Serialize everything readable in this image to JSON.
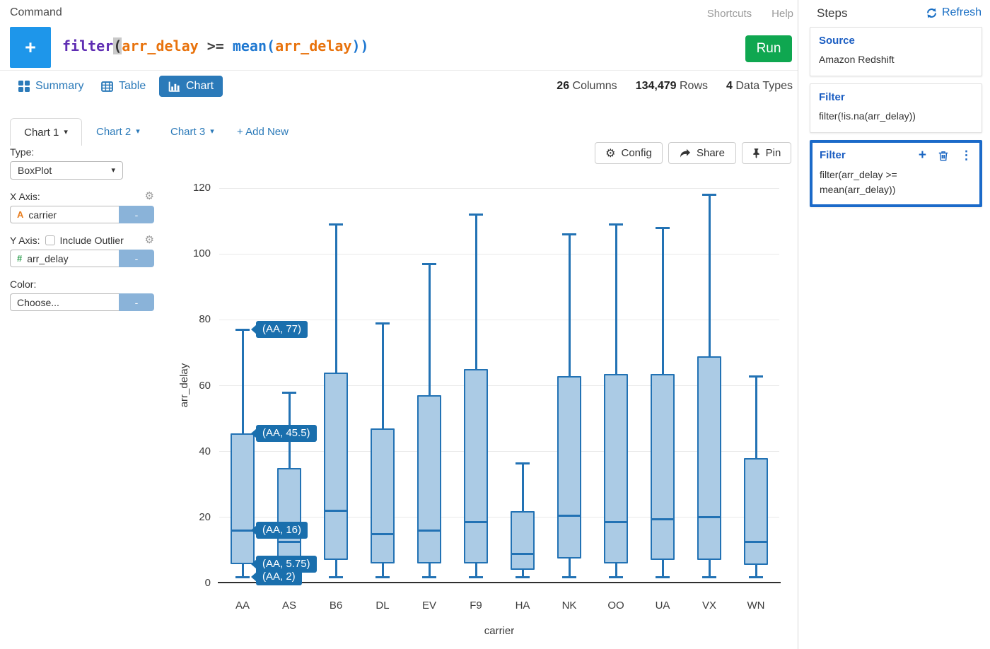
{
  "header": {
    "title": "Command",
    "shortcuts": "Shortcuts",
    "help": "Help"
  },
  "command": {
    "add_button": "+",
    "run_label": "Run",
    "tokens": [
      {
        "text": "filter",
        "type": "function"
      },
      {
        "text": "(",
        "type": "cursor"
      },
      {
        "text": "arr_delay",
        "type": "field"
      },
      {
        "text": " >= ",
        "type": "operator"
      },
      {
        "text": "mean",
        "type": "function"
      },
      {
        "text": "(",
        "type": "paren"
      },
      {
        "text": "arr_delay",
        "type": "field"
      },
      {
        "text": "))",
        "type": "paren"
      }
    ]
  },
  "view_tabs": [
    {
      "label": "Summary",
      "icon": "grid-icon",
      "active": false
    },
    {
      "label": "Table",
      "icon": "table-icon",
      "active": false
    },
    {
      "label": "Chart",
      "icon": "bar-chart-icon",
      "active": true
    }
  ],
  "stats": [
    {
      "value": "26",
      "label": "Columns"
    },
    {
      "value": "134,479",
      "label": "Rows"
    },
    {
      "value": "4",
      "label": "Data Types"
    }
  ],
  "chart_tabs": [
    {
      "label": "Chart 1",
      "active": true
    },
    {
      "label": "Chart 2",
      "active": false
    },
    {
      "label": "Chart 3",
      "active": false
    }
  ],
  "add_new_label": "+ Add New",
  "toolbar": {
    "config_label": "Config",
    "share_label": "Share",
    "pin_label": "Pin"
  },
  "config": {
    "type_label": "Type:",
    "type_value": "BoxPlot",
    "x_axis_label": "X Axis:",
    "x_field_type": "A",
    "x_field": "carrier",
    "y_axis_label": "Y Axis:",
    "include_outlier_label": "Include Outlier",
    "include_outlier_checked": false,
    "y_field_type": "#",
    "y_field": "arr_delay",
    "color_label": "Color:",
    "color_value": "Choose...",
    "remove_label": "-"
  },
  "steps": {
    "title": "Steps",
    "refresh_label": "Refresh",
    "items": [
      {
        "title": "Source",
        "body": "Amazon Redshift",
        "selected": false
      },
      {
        "title": "Filter",
        "body": "filter(!is.na(arr_delay))",
        "selected": false
      },
      {
        "title": "Filter",
        "body": "filter(arr_delay >= mean(arr_delay))",
        "selected": true
      }
    ]
  },
  "chart_data": {
    "type": "boxplot",
    "xlabel": "carrier",
    "ylabel": "arr_delay",
    "ylim": [
      0,
      120
    ],
    "yticks": [
      0,
      20,
      40,
      60,
      80,
      100,
      120
    ],
    "grid": true,
    "categories": [
      "AA",
      "AS",
      "B6",
      "DL",
      "EV",
      "F9",
      "HA",
      "NK",
      "OO",
      "UA",
      "VX",
      "WN"
    ],
    "series": [
      {
        "x": "AA",
        "low": 2,
        "q1": 5.75,
        "median": 16,
        "q3": 45.5,
        "high": 77
      },
      {
        "x": "AS",
        "low": 2,
        "q1": 8,
        "median": 12.5,
        "q3": 35,
        "high": 58
      },
      {
        "x": "B6",
        "low": 2,
        "q1": 7,
        "median": 22,
        "q3": 64,
        "high": 109
      },
      {
        "x": "DL",
        "low": 2,
        "q1": 6,
        "median": 15,
        "q3": 47,
        "high": 79
      },
      {
        "x": "EV",
        "low": 2,
        "q1": 6,
        "median": 16,
        "q3": 57,
        "high": 97
      },
      {
        "x": "F9",
        "low": 2,
        "q1": 6,
        "median": 18.5,
        "q3": 65,
        "high": 112
      },
      {
        "x": "HA",
        "low": 2,
        "q1": 4,
        "median": 9,
        "q3": 22,
        "high": 36.5
      },
      {
        "x": "NK",
        "low": 2,
        "q1": 7.5,
        "median": 20.5,
        "q3": 63,
        "high": 106
      },
      {
        "x": "OO",
        "low": 2,
        "q1": 6,
        "median": 18.5,
        "q3": 63.5,
        "high": 109
      },
      {
        "x": "UA",
        "low": 2,
        "q1": 7,
        "median": 19.5,
        "q3": 63.5,
        "high": 108
      },
      {
        "x": "VX",
        "low": 2,
        "q1": 7,
        "median": 20,
        "q3": 69,
        "high": 118
      },
      {
        "x": "WN",
        "low": 2,
        "q1": 5.5,
        "median": 12.5,
        "q3": 38,
        "high": 63
      }
    ],
    "tooltips": [
      {
        "label": "(AA, 77)",
        "value": 77
      },
      {
        "label": "(AA, 45.5)",
        "value": 45.5
      },
      {
        "label": "(AA, 16)",
        "value": 16
      },
      {
        "label": "(AA, 5.75)",
        "value": 5.75
      },
      {
        "label": "(AA, 2)",
        "value": 2
      }
    ]
  },
  "colors": {
    "accent_blue": "#2b7ab9",
    "step_title_blue": "#1a5dc2",
    "selected_border_blue": "#1b6ac9",
    "run_green": "#0fa750",
    "add_button_blue": "#1e96ea",
    "box_stroke": "#2272b4",
    "box_fill": "#abcbe5",
    "tooltip_bg": "#1a6fad",
    "minus_button_blue": "#8ab3d9",
    "field_type_orange": "#e87d1e",
    "field_type_green": "#2e9e4f"
  }
}
